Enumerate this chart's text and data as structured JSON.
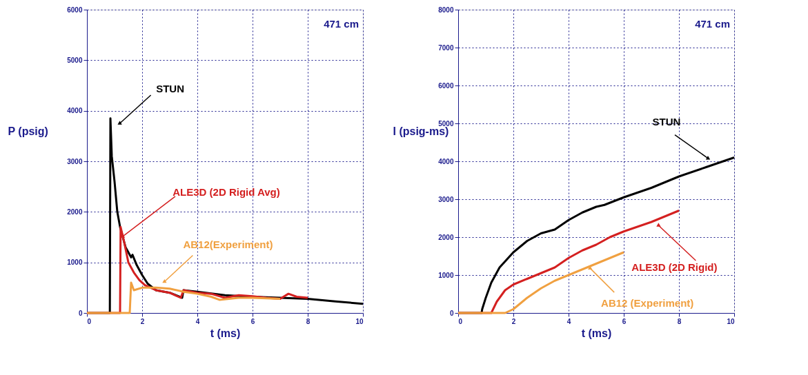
{
  "chart_data": [
    {
      "type": "line",
      "xlabel": "t (ms)",
      "ylabel": "P (psig)",
      "xlim": [
        0,
        10
      ],
      "ylim": [
        0,
        6000
      ],
      "xticks": [
        0,
        2,
        4,
        6,
        8,
        10
      ],
      "yticks": [
        0,
        1000,
        2000,
        3000,
        4000,
        5000,
        6000
      ],
      "grid": true,
      "legend": false,
      "series": [
        {
          "color": "#000000",
          "x": [
            0,
            0.83,
            0.85,
            0.9,
            1.0,
            1.1,
            1.2,
            1.4,
            1.6,
            1.65,
            1.8,
            2.0,
            2.2,
            2.5,
            3.0,
            3.45,
            3.5,
            4.0,
            5.0,
            6.0,
            7.0,
            8.0,
            9.0,
            10.0
          ],
          "values": [
            0,
            0,
            3850,
            3100,
            2600,
            2000,
            1700,
            1300,
            1100,
            1150,
            950,
            750,
            580,
            450,
            400,
            300,
            450,
            420,
            350,
            320,
            300,
            280,
            230,
            180
          ]
        },
        {
          "color": "#d42020",
          "x": [
            0,
            1.2,
            1.22,
            1.35,
            1.5,
            1.7,
            1.9,
            2.1,
            2.5,
            3.0,
            3.4,
            3.5,
            4.0,
            4.5,
            5.0,
            5.5,
            6.0,
            6.5,
            7.0,
            7.3,
            7.6,
            8.0
          ],
          "values": [
            0,
            0,
            1700,
            1400,
            1000,
            800,
            650,
            550,
            450,
            400,
            300,
            450,
            400,
            380,
            300,
            350,
            330,
            300,
            280,
            380,
            320,
            300
          ]
        },
        {
          "color": "#f0a040",
          "x": [
            0,
            1.55,
            1.6,
            1.7,
            2.0,
            2.5,
            3.0,
            3.5,
            4.0,
            4.5,
            4.8,
            5.5,
            6.0,
            7.0
          ],
          "values": [
            0,
            0,
            600,
            450,
            500,
            500,
            480,
            420,
            380,
            320,
            260,
            300,
            300,
            280
          ]
        }
      ],
      "annotations": [
        {
          "text": "STUN",
          "x": 1.19,
          "y": 3750
        },
        {
          "text": "ALE3D (2D Rigid Avg)",
          "x": 1.3,
          "y": 1515
        },
        {
          "text": "AB12(Experiment)",
          "x": 2.81,
          "y": 620
        },
        "471 cm"
      ]
    },
    {
      "type": "line",
      "xlabel": "t (ms)",
      "ylabel": "I (psig-ms)",
      "xlim": [
        0,
        10
      ],
      "ylim": [
        0,
        8000
      ],
      "xticks": [
        0,
        2,
        4,
        6,
        8,
        10
      ],
      "yticks": [
        0,
        1000,
        2000,
        3000,
        4000,
        5000,
        6000,
        7000,
        8000
      ],
      "grid": true,
      "legend": false,
      "series": [
        {
          "color": "#000000",
          "x": [
            0,
            0.85,
            0.87,
            1.0,
            1.2,
            1.5,
            2.0,
            2.5,
            3.0,
            3.5,
            4.0,
            4.5,
            5.0,
            5.3,
            6.0,
            7.0,
            8.0,
            9.0,
            10.0
          ],
          "values": [
            0,
            0,
            100,
            400,
            800,
            1200,
            1600,
            1900,
            2100,
            2200,
            2450,
            2650,
            2800,
            2850,
            3050,
            3300,
            3600,
            3850,
            4100
          ]
        },
        {
          "color": "#d42020",
          "x": [
            0,
            1.2,
            1.4,
            1.7,
            2.0,
            2.5,
            3.0,
            3.5,
            4.0,
            4.5,
            5.0,
            5.5,
            6.0,
            7.0,
            8.0
          ],
          "values": [
            0,
            0,
            300,
            600,
            750,
            900,
            1050,
            1200,
            1450,
            1650,
            1800,
            2000,
            2150,
            2400,
            2700
          ]
        },
        {
          "color": "#f0a040",
          "x": [
            0,
            1.7,
            2.0,
            2.5,
            3.0,
            3.5,
            4.0,
            4.5,
            5.0,
            5.5,
            6.0
          ],
          "values": [
            0,
            0,
            100,
            400,
            650,
            850,
            1000,
            1150,
            1300,
            1450,
            1600
          ]
        }
      ],
      "annotations": [
        {
          "text": "STUN",
          "x": 9.05,
          "y": 4080
        },
        {
          "text": "ALE3D (2D Rigid)",
          "x": 7.26,
          "y": 2310
        },
        {
          "text": "AB12 (Experiment)",
          "x": 4.78,
          "y": 1180
        },
        "471 cm"
      ]
    }
  ]
}
